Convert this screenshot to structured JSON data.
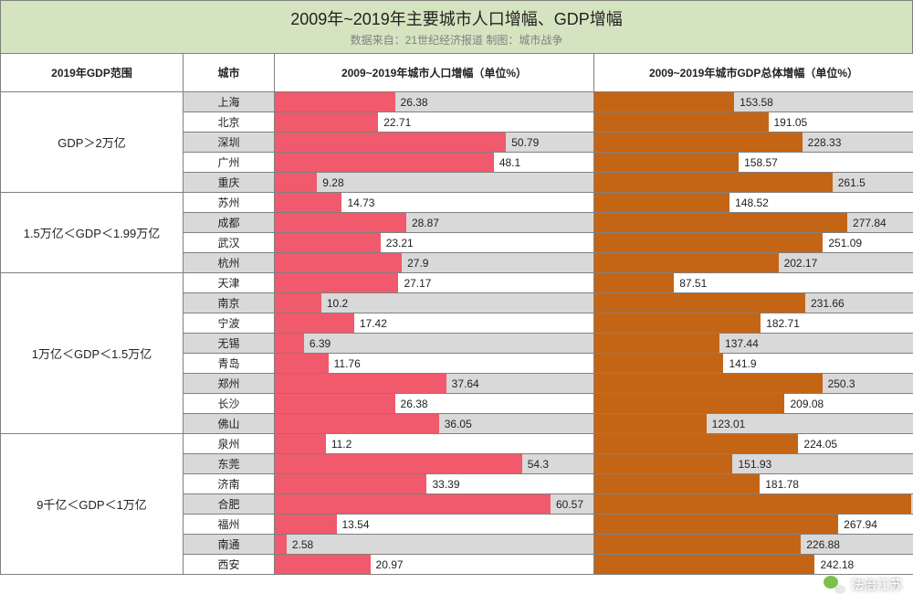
{
  "header": {
    "title": "2009年~2019年主要城市人口增幅、GDP增幅",
    "subtitle": "数据来自：21世纪经济报道  制图：城市战争"
  },
  "columns": {
    "range": "2019年GDP范围",
    "city": "城市",
    "pop": "2009~2019年城市人口增幅（单位%）",
    "gdp": "2009~2019年城市GDP总体增幅（单位%）"
  },
  "chart": {
    "pop_max": 70,
    "gdp_max": 350,
    "pop_bar_color": "#f05a6c",
    "gdp_bar_color": "#c46516",
    "row_bg_alt": "#d9d9d9",
    "row_bg_norm": "#ffffff",
    "header_bg": "#d5e4c0",
    "border_color": "#808080",
    "label_fontsize": 12
  },
  "groups": [
    {
      "range": "GDP＞2万亿",
      "rows": [
        {
          "city": "上海",
          "pop": 26.38,
          "gdp": 153.58,
          "alt": true
        },
        {
          "city": "北京",
          "pop": 22.71,
          "gdp": 191.05,
          "alt": false
        },
        {
          "city": "深圳",
          "pop": 50.79,
          "gdp": 228.33,
          "alt": true
        },
        {
          "city": "广州",
          "pop": 48.1,
          "gdp": 158.57,
          "alt": false
        },
        {
          "city": "重庆",
          "pop": 9.28,
          "gdp": 261.5,
          "alt": true
        }
      ]
    },
    {
      "range": "1.5万亿＜GDP＜1.99万亿",
      "rows": [
        {
          "city": "苏州",
          "pop": 14.73,
          "gdp": 148.52,
          "alt": false
        },
        {
          "city": "成都",
          "pop": 28.87,
          "gdp": 277.84,
          "alt": true
        },
        {
          "city": "武汉",
          "pop": 23.21,
          "gdp": 251.09,
          "alt": false
        },
        {
          "city": "杭州",
          "pop": 27.9,
          "gdp": 202.17,
          "alt": true
        }
      ]
    },
    {
      "range": "1万亿＜GDP＜1.5万亿",
      "rows": [
        {
          "city": "天津",
          "pop": 27.17,
          "gdp": 87.51,
          "alt": false
        },
        {
          "city": "南京",
          "pop": 10.2,
          "gdp": 231.66,
          "alt": true
        },
        {
          "city": "宁波",
          "pop": 17.42,
          "gdp": 182.71,
          "alt": false
        },
        {
          "city": "无锡",
          "pop": 6.39,
          "gdp": 137.44,
          "alt": true
        },
        {
          "city": "青岛",
          "pop": 11.76,
          "gdp": 141.9,
          "alt": false
        },
        {
          "city": "郑州",
          "pop": 37.64,
          "gdp": 250.3,
          "alt": true
        },
        {
          "city": "长沙",
          "pop": 26.38,
          "gdp": 209.08,
          "alt": false
        },
        {
          "city": "佛山",
          "pop": 36.05,
          "gdp": 123.01,
          "alt": true
        }
      ]
    },
    {
      "range": "9千亿＜GDP＜1万亿",
      "rows": [
        {
          "city": "泉州",
          "pop": 11.2,
          "gdp": 224.05,
          "alt": false
        },
        {
          "city": "东莞",
          "pop": 54.3,
          "gdp": 151.93,
          "alt": true
        },
        {
          "city": "济南",
          "pop": 33.39,
          "gdp": 181.78,
          "alt": false
        },
        {
          "city": "合肥",
          "pop": 60.57,
          "gdp": 347.61,
          "alt": true
        },
        {
          "city": "福州",
          "pop": 13.54,
          "gdp": 267.94,
          "alt": false
        },
        {
          "city": "南通",
          "pop": 2.58,
          "gdp": 226.88,
          "alt": true
        },
        {
          "city": "西安",
          "pop": 20.97,
          "gdp": 242.18,
          "alt": false
        }
      ]
    }
  ],
  "watermark": {
    "text": "法治江苏"
  }
}
